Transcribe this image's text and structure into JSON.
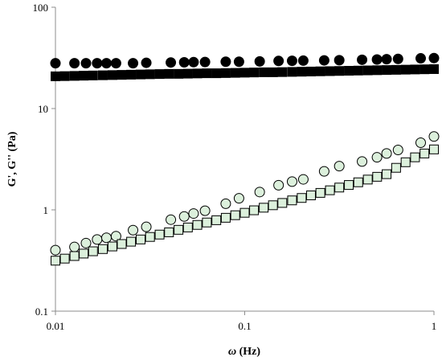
{
  "chart_data": {
    "type": "scatter",
    "title": "",
    "xlabel_symbol": "ω",
    "xlabel_unit": " (Hz)",
    "ylabel": "G', G'' (Pa)",
    "xscale": "log",
    "yscale": "log",
    "xlim": [
      0.01,
      1
    ],
    "ylim": [
      0.1,
      100
    ],
    "xticks": [
      0.01,
      0.1,
      1
    ],
    "xtick_labels": [
      "0.01",
      "0.1",
      "1"
    ],
    "yticks": [
      0.1,
      1,
      10,
      100
    ],
    "ytick_labels": [
      "0.1",
      "1",
      "10",
      "100"
    ],
    "grid": false,
    "legend": "none",
    "series": [
      {
        "marker": "circle",
        "fill": "#000000",
        "stroke": "#000000",
        "x": [
          0.01,
          0.0126,
          0.0145,
          0.0166,
          0.0186,
          0.0209,
          0.0257,
          0.0302,
          0.0407,
          0.0479,
          0.0537,
          0.0617,
          0.0794,
          0.0933,
          0.12,
          0.151,
          0.178,
          0.204,
          0.263,
          0.316,
          0.417,
          0.5,
          0.562,
          0.646,
          0.851,
          1.0
        ],
        "values": [
          28,
          28,
          28,
          28,
          28,
          28,
          28,
          28.3,
          28.5,
          28.6,
          28.7,
          28.8,
          29,
          29,
          29.2,
          29.5,
          29.6,
          29.7,
          29.9,
          30,
          30.3,
          30.5,
          30.7,
          30.9,
          31.3,
          31.5
        ]
      },
      {
        "marker": "square",
        "fill": "#000000",
        "stroke": "#000000",
        "x": [
          0.01,
          0.0112,
          0.0126,
          0.0141,
          0.0158,
          0.0178,
          0.02,
          0.0224,
          0.0251,
          0.0282,
          0.0316,
          0.0355,
          0.0398,
          0.0447,
          0.0501,
          0.0562,
          0.0631,
          0.0708,
          0.0794,
          0.0891,
          0.1,
          0.112,
          0.126,
          0.141,
          0.158,
          0.178,
          0.2,
          0.224,
          0.251,
          0.282,
          0.316,
          0.355,
          0.398,
          0.447,
          0.501,
          0.562,
          0.631,
          0.708,
          0.794,
          0.891,
          1.0
        ],
        "values": [
          20.8,
          20.9,
          21.0,
          21.1,
          21.2,
          21.3,
          21.4,
          21.5,
          21.6,
          21.7,
          21.8,
          21.9,
          22.0,
          22.0,
          22.1,
          22.2,
          22.3,
          22.3,
          22.4,
          22.5,
          22.6,
          22.7,
          22.8,
          22.8,
          22.9,
          23.0,
          23.1,
          23.2,
          23.3,
          23.4,
          23.5,
          23.6,
          23.7,
          23.8,
          23.9,
          24.0,
          24.1,
          24.2,
          24.3,
          24.4,
          24.5
        ]
      },
      {
        "marker": "circle",
        "fill": "#dcf0dc",
        "stroke": "#000000",
        "x": [
          0.01,
          0.0126,
          0.0145,
          0.0166,
          0.0186,
          0.0209,
          0.0257,
          0.0302,
          0.0407,
          0.0479,
          0.0537,
          0.0617,
          0.0794,
          0.0933,
          0.12,
          0.151,
          0.178,
          0.204,
          0.263,
          0.316,
          0.417,
          0.5,
          0.562,
          0.646,
          0.851,
          1.0
        ],
        "values": [
          0.4,
          0.43,
          0.47,
          0.51,
          0.53,
          0.55,
          0.63,
          0.68,
          0.8,
          0.86,
          0.92,
          0.98,
          1.15,
          1.3,
          1.5,
          1.75,
          1.9,
          2.0,
          2.4,
          2.7,
          3.0,
          3.3,
          3.6,
          3.9,
          4.6,
          5.3
        ]
      },
      {
        "marker": "square",
        "fill": "#dcf0dc",
        "stroke": "#000000",
        "x": [
          0.01,
          0.0112,
          0.0126,
          0.0141,
          0.0158,
          0.0178,
          0.02,
          0.0224,
          0.0251,
          0.0282,
          0.0316,
          0.0355,
          0.0398,
          0.0447,
          0.0501,
          0.0562,
          0.0631,
          0.0708,
          0.0794,
          0.0891,
          0.1,
          0.112,
          0.126,
          0.141,
          0.158,
          0.178,
          0.2,
          0.224,
          0.251,
          0.282,
          0.316,
          0.355,
          0.398,
          0.447,
          0.501,
          0.562,
          0.631,
          0.708,
          0.794,
          0.891,
          1.0
        ],
        "values": [
          0.315,
          0.33,
          0.35,
          0.37,
          0.39,
          0.41,
          0.435,
          0.46,
          0.485,
          0.51,
          0.54,
          0.57,
          0.6,
          0.635,
          0.67,
          0.71,
          0.75,
          0.79,
          0.835,
          0.885,
          0.935,
          0.99,
          1.05,
          1.11,
          1.17,
          1.24,
          1.31,
          1.39,
          1.47,
          1.56,
          1.66,
          1.76,
          1.87,
          1.99,
          2.12,
          2.25,
          2.6,
          2.95,
          3.3,
          3.6,
          3.95
        ]
      }
    ]
  }
}
